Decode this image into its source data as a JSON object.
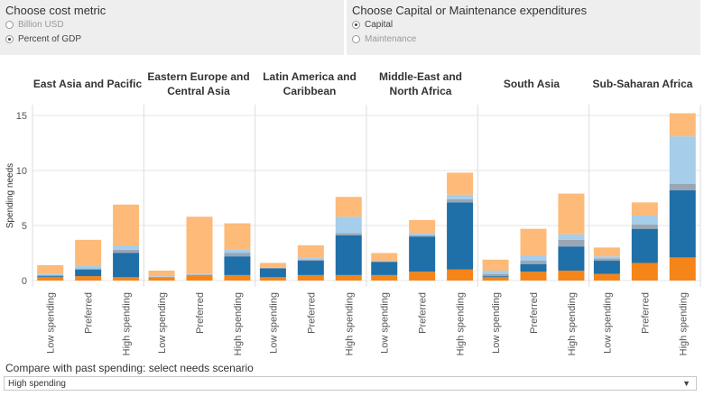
{
  "cost_metric": {
    "title": "Choose cost metric",
    "options": [
      {
        "label": "Billion USD",
        "selected": false
      },
      {
        "label": "Percent of GDP",
        "selected": true
      }
    ]
  },
  "expenditure_type": {
    "title": "Choose Capital or Maintenance expenditures",
    "options": [
      {
        "label": "Capital",
        "selected": true
      },
      {
        "label": "Maintenance",
        "selected": false
      }
    ]
  },
  "compare": {
    "label": "Compare with past spending: select needs scenario",
    "selected": "High spending",
    "caret_icon": "chevron-down-icon"
  },
  "chart_data": {
    "type": "bar",
    "stacked": true,
    "ylabel": "Spending needs",
    "ylim": [
      0,
      16
    ],
    "yticks": [
      0,
      5,
      10,
      15
    ],
    "regions": [
      "East Asia and Pacific",
      "Eastern Europe and Central Asia",
      "Latin America and Caribbean",
      "Middle-East and North Africa",
      "South Asia",
      "Sub-Saharan Africa"
    ],
    "categories": [
      "Low spending",
      "Preferred",
      "High spending"
    ],
    "series_colors": [
      "#f58518",
      "#1f6fa8",
      "#9aa6b4",
      "#a6cdea",
      "#fdba79"
    ],
    "bars": [
      [
        [
          0.3,
          0.1,
          0.1,
          0.1,
          0.8
        ],
        [
          0.4,
          0.6,
          0.1,
          0.3,
          2.3
        ],
        [
          0.3,
          2.2,
          0.3,
          0.4,
          3.7
        ]
      ],
      [
        [
          0.3,
          0.0,
          0.05,
          0.05,
          0.5
        ],
        [
          0.5,
          0.0,
          0.05,
          0.05,
          5.2
        ],
        [
          0.5,
          1.7,
          0.3,
          0.3,
          2.4
        ]
      ],
      [
        [
          0.3,
          0.8,
          0.05,
          0.05,
          0.4
        ],
        [
          0.5,
          1.3,
          0.1,
          0.2,
          1.1
        ],
        [
          0.5,
          3.6,
          0.2,
          1.5,
          1.8
        ]
      ],
      [
        [
          0.5,
          1.2,
          0.05,
          0.05,
          0.7
        ],
        [
          0.8,
          3.2,
          0.1,
          0.2,
          1.2
        ],
        [
          1.0,
          6.1,
          0.3,
          0.4,
          2.0
        ]
      ],
      [
        [
          0.3,
          0.1,
          0.2,
          0.3,
          1.0
        ],
        [
          0.8,
          0.7,
          0.3,
          0.5,
          2.4
        ],
        [
          0.9,
          2.2,
          0.6,
          0.5,
          3.7
        ]
      ],
      [
        [
          0.6,
          1.2,
          0.2,
          0.2,
          0.8
        ],
        [
          1.6,
          3.1,
          0.4,
          0.8,
          1.2
        ],
        [
          2.1,
          6.1,
          0.6,
          4.3,
          2.1
        ]
      ]
    ]
  }
}
